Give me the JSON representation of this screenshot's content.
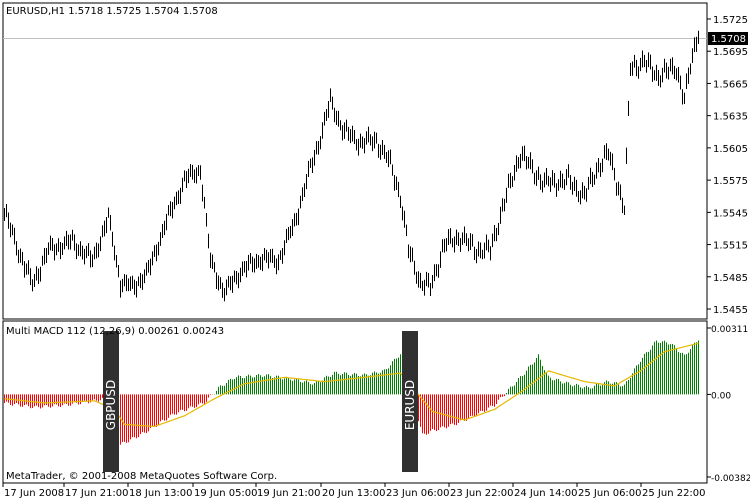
{
  "window": {
    "header": "EURUSD,H1  1.5718 1.5725 1.5704 1.5708",
    "copyright": "MetaTrader, © 2001-2008 MetaQuotes Software Corp."
  },
  "price_axis": {
    "labels": [
      "1.5725",
      "1.5695",
      "1.5665",
      "1.5635",
      "1.5605",
      "1.5575",
      "1.5545",
      "1.5515",
      "1.5485",
      "1.5455"
    ],
    "current_price": "1.5708"
  },
  "indicator": {
    "header": "Multi MACD 112 (12,26,9) 0.00261 0.00243",
    "axis_labels": [
      "0.00311",
      "0.00",
      "-0.00382"
    ],
    "symbol_tags": [
      "GBPUSD",
      "EURUSD"
    ]
  },
  "time_axis": {
    "labels": [
      "17 Jun 2008",
      "17 Jun 21:00",
      "18 Jun 13:00",
      "19 Jun 05:00",
      "19 Jun 21:00",
      "20 Jun 13:00",
      "23 Jun 06:00",
      "23 Jun 22:00",
      "24 Jun 14:00",
      "25 Jun 06:00",
      "25 Jun 22:00"
    ]
  },
  "colors": {
    "background": "#ffffff",
    "bar": "#000000",
    "grid": "#c0c0c0",
    "hist_positive": "#008000",
    "hist_negative": "#ff0000",
    "signal_line": "#e6b800",
    "tag_bg": "#303030",
    "tag_text": "#ffffff"
  },
  "chart_data": {
    "type": "ohlc",
    "price_anchors": [
      [
        0,
        1.5545
      ],
      [
        8,
        1.5505
      ],
      [
        14,
        1.5478
      ],
      [
        22,
        1.551
      ],
      [
        34,
        1.5518
      ],
      [
        44,
        1.55
      ],
      [
        52,
        1.554
      ],
      [
        58,
        1.548
      ],
      [
        64,
        1.5475
      ],
      [
        72,
        1.549
      ],
      [
        80,
        1.5532
      ],
      [
        90,
        1.5575
      ],
      [
        98,
        1.5585
      ],
      [
        103,
        1.55
      ],
      [
        110,
        1.547
      ],
      [
        118,
        1.549
      ],
      [
        128,
        1.5502
      ],
      [
        137,
        1.55
      ],
      [
        145,
        1.5535
      ],
      [
        152,
        1.558
      ],
      [
        158,
        1.5615
      ],
      [
        163,
        1.5648
      ],
      [
        170,
        1.562
      ],
      [
        178,
        1.561
      ],
      [
        186,
        1.5612
      ],
      [
        193,
        1.559
      ],
      [
        198,
        1.556
      ],
      [
        202,
        1.551
      ],
      [
        208,
        1.548
      ],
      [
        213,
        1.5475
      ],
      [
        220,
        1.5515
      ],
      [
        228,
        1.5522
      ],
      [
        236,
        1.551
      ],
      [
        243,
        1.551
      ],
      [
        250,
        1.5555
      ],
      [
        258,
        1.56
      ],
      [
        264,
        1.5585
      ],
      [
        270,
        1.5572
      ],
      [
        282,
        1.5575
      ],
      [
        290,
        1.556
      ],
      [
        296,
        1.5585
      ],
      [
        302,
        1.56
      ],
      [
        306,
        1.5575
      ],
      [
        310,
        1.5548
      ],
      [
        313,
        1.568
      ],
      [
        320,
        1.5685
      ],
      [
        327,
        1.5672
      ],
      [
        336,
        1.568
      ],
      [
        340,
        1.565
      ],
      [
        344,
        1.569
      ],
      [
        347,
        1.5715
      ]
    ],
    "macd_hist_anchors": [
      [
        0,
        -0.0004
      ],
      [
        15,
        -0.0006
      ],
      [
        30,
        -0.0005
      ],
      [
        45,
        -0.0003
      ],
      [
        50,
        -0.0002
      ],
      [
        52,
        -0.0004
      ],
      [
        57,
        -0.0024
      ],
      [
        70,
        -0.0018
      ],
      [
        85,
        -0.0009
      ],
      [
        100,
        -0.0004
      ],
      [
        107,
        0.0003
      ],
      [
        115,
        0.0008
      ],
      [
        130,
        0.0009
      ],
      [
        145,
        0.0007
      ],
      [
        155,
        0.0005
      ],
      [
        165,
        0.001
      ],
      [
        180,
        0.0009
      ],
      [
        190,
        0.0011
      ],
      [
        198,
        0.0019
      ],
      [
        200,
        0.0002
      ],
      [
        204,
        -0.0001
      ],
      [
        209,
        -0.0019
      ],
      [
        214,
        -0.0017
      ],
      [
        225,
        -0.0014
      ],
      [
        235,
        -0.001
      ],
      [
        245,
        -0.0005
      ],
      [
        252,
        0.0002
      ],
      [
        260,
        0.001
      ],
      [
        267,
        0.0018
      ],
      [
        272,
        0.0008
      ],
      [
        282,
        0.0005
      ],
      [
        292,
        0.0003
      ],
      [
        302,
        0.0006
      ],
      [
        310,
        0.0004
      ],
      [
        318,
        0.0016
      ],
      [
        326,
        0.0025
      ],
      [
        333,
        0.0024
      ],
      [
        340,
        0.0018
      ],
      [
        347,
        0.0026
      ]
    ],
    "signal_anchors": [
      [
        0,
        -0.0002
      ],
      [
        20,
        -0.0004
      ],
      [
        45,
        -0.0003
      ],
      [
        55,
        -0.0007
      ],
      [
        60,
        -0.0014
      ],
      [
        75,
        -0.0015
      ],
      [
        90,
        -0.001
      ],
      [
        105,
        -0.0002
      ],
      [
        120,
        0.0005
      ],
      [
        140,
        0.0008
      ],
      [
        160,
        0.0006
      ],
      [
        180,
        0.0008
      ],
      [
        198,
        0.001
      ],
      [
        206,
        0.0001
      ],
      [
        214,
        -0.0008
      ],
      [
        230,
        -0.0012
      ],
      [
        245,
        -0.0007
      ],
      [
        258,
        0.0001
      ],
      [
        272,
        0.0011
      ],
      [
        290,
        0.0006
      ],
      [
        305,
        0.0004
      ],
      [
        318,
        0.0011
      ],
      [
        330,
        0.002
      ],
      [
        347,
        0.0024
      ]
    ]
  }
}
